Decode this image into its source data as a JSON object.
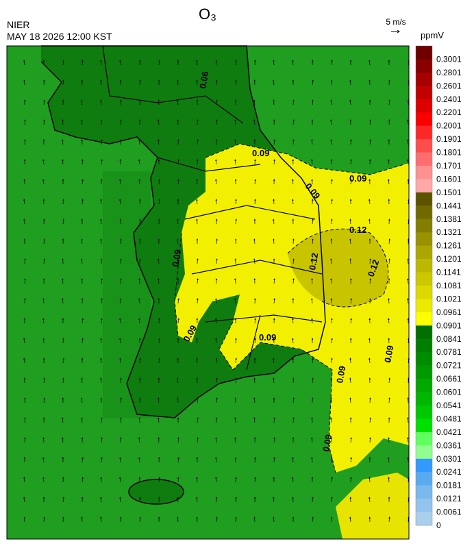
{
  "header": {
    "title": "O₃",
    "agency": "NIER",
    "datetime": "MAY 18 2026 12:00 KST",
    "vector_scale": "5 m/s",
    "unit": "ppmV"
  },
  "colorbar": {
    "labels": [
      0.3001,
      0.2801,
      0.2601,
      0.2401,
      0.2201,
      0.2001,
      0.1901,
      0.1801,
      0.1701,
      0.1601,
      0.1501,
      0.1441,
      0.1381,
      0.1321,
      0.1261,
      0.1201,
      0.1141,
      0.1081,
      0.1021,
      0.0961,
      0.0901,
      0.0841,
      0.0781,
      0.0721,
      0.0661,
      0.0601,
      0.0541,
      0.0481,
      0.0421,
      0.0361,
      0.0301,
      0.0241,
      0.0181,
      0.0121,
      0.0061,
      0
    ],
    "colors": [
      "#6e0000",
      "#8a0000",
      "#a60000",
      "#c20000",
      "#de0000",
      "#fa0000",
      "#ff2828",
      "#ff4c4c",
      "#ff6e6e",
      "#ff9090",
      "#ffa8a8",
      "#5c5400",
      "#706a00",
      "#847e00",
      "#989200",
      "#aca600",
      "#bcb800",
      "#ccc800",
      "#dcd800",
      "#ecea00",
      "#ffff00",
      "#007000",
      "#007e00",
      "#008c00",
      "#009a00",
      "#00a800",
      "#00b600",
      "#00c800",
      "#00e000",
      "#60ff60",
      "#90ff90",
      "#3399ff",
      "#5aaaf0",
      "#7ab8ee",
      "#92c4ee",
      "#a8cfec"
    ]
  },
  "contour_labels": [
    "0.09",
    "0.09",
    "0.09",
    "0.12",
    "0.12",
    "0.12",
    "0.09",
    "0.09",
    "0.09",
    "0.06",
    "0.09",
    "0.09",
    "0.09"
  ]
}
